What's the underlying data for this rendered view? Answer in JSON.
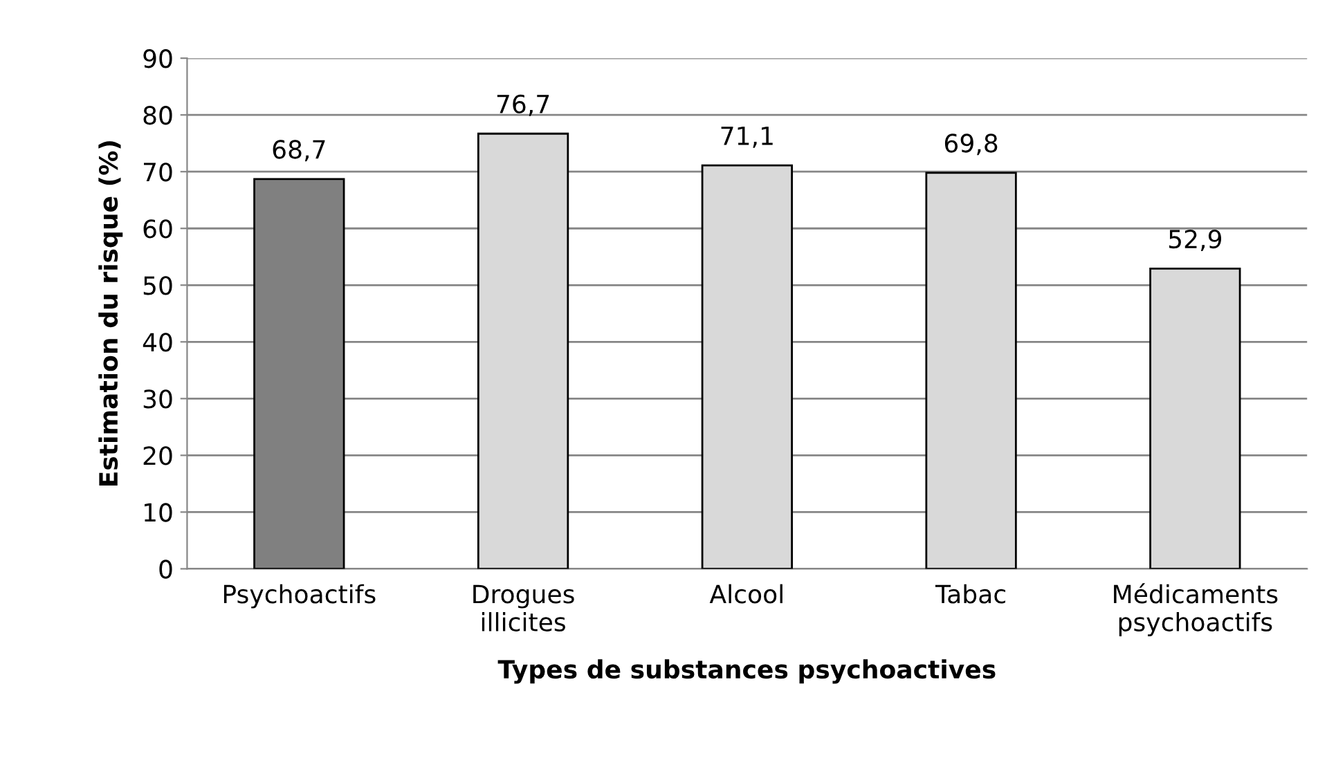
{
  "chart_data": {
    "type": "bar",
    "xlabel": "Types de substances psychoactives",
    "ylabel": "Estimation du risque (%)",
    "categories": [
      "Psychoactifs",
      "Drogues\nillicites",
      "Alcool",
      "Tabac",
      "Médicaments\npsychoactifs"
    ],
    "values": [
      68.7,
      76.7,
      71.1,
      69.8,
      52.9
    ],
    "colors": [
      "#808080",
      "#d9d9d9",
      "#d9d9d9",
      "#d9d9d9",
      "#d9d9d9"
    ],
    "value_labels": [
      "68,7",
      "76,7",
      "71,1",
      "69,8",
      "52,9"
    ],
    "ylim": [
      0,
      90
    ],
    "yticks": [
      0,
      10,
      20,
      30,
      40,
      50,
      60,
      70,
      80,
      90
    ],
    "grid": "y",
    "legend": false
  }
}
